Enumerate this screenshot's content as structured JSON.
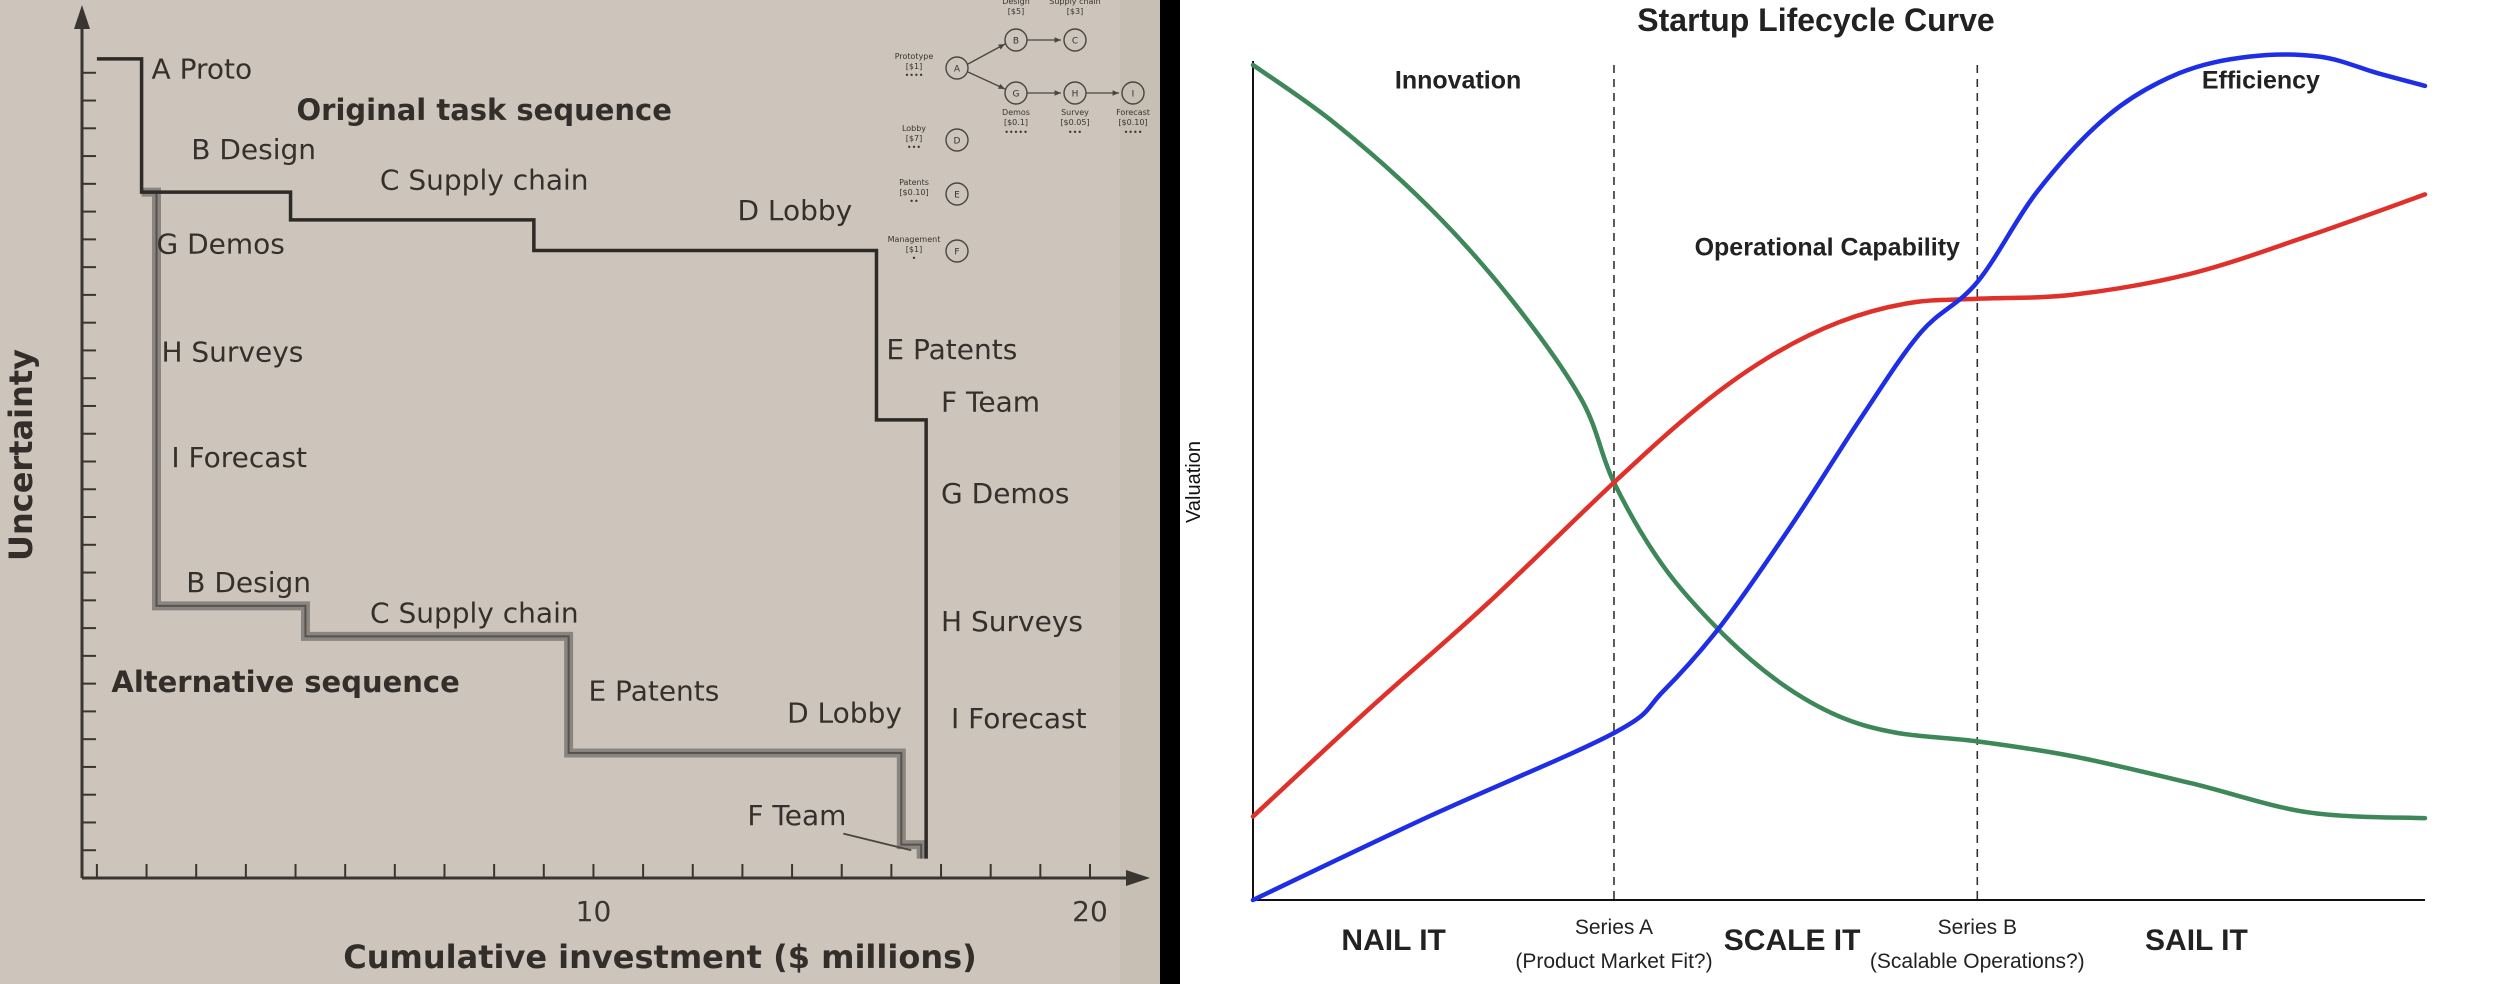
{
  "colors": {
    "paper": "#cdc5bb",
    "paper_dark": "#bdb4a8",
    "ink": "#3a3530",
    "alt_path": "#8a8580",
    "innovation": "#3d8758",
    "operational": "#e0302a",
    "efficiency": "#1e2ee6",
    "right_bg": "#ffffff"
  },
  "chart_data": [
    {
      "type": "line",
      "title": "",
      "xlabel": "Cumulative investment ($ millions)",
      "ylabel": "Uncertainty",
      "xlim": [
        -0.3,
        21
      ],
      "ylim": [
        0,
        30
      ],
      "x_ticks": [
        {
          "value": 10,
          "label": "10"
        },
        {
          "value": 20,
          "label": "20"
        }
      ],
      "annotations": [
        {
          "text": "Original task sequence",
          "x": 7.8,
          "y": 27.3,
          "bold": true
        },
        {
          "text": "Alternative sequence",
          "x": 3.8,
          "y": 6.7,
          "bold": true
        }
      ],
      "series": [
        {
          "name": "Original task sequence",
          "points": [
            [
              0,
              29.5
            ],
            [
              0.9,
              29.5
            ],
            [
              0.9,
              24.7
            ],
            [
              3.9,
              24.7
            ],
            [
              3.9,
              23.7
            ],
            [
              8.8,
              23.7
            ],
            [
              8.8,
              22.6
            ],
            [
              15.7,
              22.6
            ],
            [
              15.7,
              16.5
            ],
            [
              16.7,
              16.5
            ],
            [
              16.7,
              0.7
            ]
          ],
          "labels": [
            {
              "text": "A Proto",
              "x": 1.1,
              "y": 28.8
            },
            {
              "text": "B Design",
              "x": 1.9,
              "y": 25.9
            },
            {
              "text": "C Supply chain",
              "x": 5.7,
              "y": 24.8
            },
            {
              "text": "D Lobby",
              "x": 12.9,
              "y": 23.7
            },
            {
              "text": "E Patents",
              "x": 15.9,
              "y": 18.7
            },
            {
              "text": "F Team",
              "x": 17.0,
              "y": 16.8
            },
            {
              "text": "G Demos",
              "x": 17.0,
              "y": 13.5
            },
            {
              "text": "H Surveys",
              "x": 17.0,
              "y": 8.9
            },
            {
              "text": "I Forecast",
              "x": 17.2,
              "y": 5.4
            }
          ]
        },
        {
          "name": "Alternative sequence",
          "points": [
            [
              0.9,
              24.7
            ],
            [
              1.2,
              24.7
            ],
            [
              1.2,
              9.8
            ],
            [
              4.2,
              9.8
            ],
            [
              4.2,
              8.7
            ],
            [
              9.5,
              8.7
            ],
            [
              9.5,
              4.5
            ],
            [
              16.2,
              4.5
            ],
            [
              16.2,
              1.2
            ],
            [
              16.6,
              1.2
            ],
            [
              16.6,
              0.7
            ]
          ],
          "labels": [
            {
              "text": "G Demos",
              "x": 1.2,
              "y": 22.5
            },
            {
              "text": "H Surveys",
              "x": 1.3,
              "y": 18.6
            },
            {
              "text": "I Forecast",
              "x": 1.5,
              "y": 14.8
            },
            {
              "text": "B Design",
              "x": 1.8,
              "y": 10.3
            },
            {
              "text": "C Supply chain",
              "x": 5.5,
              "y": 9.2
            },
            {
              "text": "E Patents",
              "x": 9.9,
              "y": 6.4
            },
            {
              "text": "D Lobby",
              "x": 13.9,
              "y": 5.6
            },
            {
              "text": "F Team",
              "x": 13.1,
              "y": 1.9
            }
          ]
        }
      ]
    },
    {
      "type": "line",
      "title": "Startup Lifecycle Curve",
      "xlabel": "",
      "ylabel": "Valuation",
      "xlim": [
        0,
        10
      ],
      "ylim": [
        0,
        10
      ],
      "grid": false,
      "vlines": [
        {
          "x": 3.08,
          "label": "Series A",
          "sublabel": "(Product Market Fit?)"
        },
        {
          "x": 6.18,
          "label": "Series B",
          "sublabel": "(Scalable Operations?)"
        }
      ],
      "phase_labels": [
        {
          "text": "NAIL IT",
          "x": 1.2
        },
        {
          "text": "SCALE IT",
          "x": 4.6
        },
        {
          "text": "SAIL IT",
          "x": 8.05
        }
      ],
      "series": [
        {
          "name": "Innovation",
          "label_x": 1.75,
          "label_y": 9.72,
          "values": [
            [
              0,
              10
            ],
            [
              0.7,
              9.3
            ],
            [
              1.5,
              8.3
            ],
            [
              2.2,
              7.2
            ],
            [
              2.8,
              6.0
            ],
            [
              3.08,
              5.0
            ],
            [
              3.5,
              4.0
            ],
            [
              4.0,
              3.2
            ],
            [
              4.5,
              2.6
            ],
            [
              5.0,
              2.2
            ],
            [
              5.5,
              2.0
            ],
            [
              6.18,
              1.9
            ],
            [
              7.0,
              1.72
            ],
            [
              8.0,
              1.4
            ],
            [
              9.0,
              1.05
            ],
            [
              10,
              0.98
            ]
          ]
        },
        {
          "name": "Operational Capability",
          "label_x": 4.9,
          "label_y": 7.72,
          "values": [
            [
              0,
              1.0
            ],
            [
              1.0,
              2.3
            ],
            [
              2.0,
              3.55
            ],
            [
              3.08,
              5.0
            ],
            [
              3.8,
              5.9
            ],
            [
              4.4,
              6.5
            ],
            [
              5.0,
              6.92
            ],
            [
              5.6,
              7.15
            ],
            [
              6.18,
              7.2
            ],
            [
              7.0,
              7.25
            ],
            [
              8.0,
              7.5
            ],
            [
              9.0,
              7.95
            ],
            [
              10,
              8.45
            ]
          ]
        },
        {
          "name": "Efficiency",
          "label_x": 8.6,
          "label_y": 9.72,
          "values": [
            [
              0,
              0
            ],
            [
              1.5,
              1.0
            ],
            [
              3.08,
              2.0
            ],
            [
              3.5,
              2.5
            ],
            [
              4.0,
              3.3
            ],
            [
              4.6,
              4.5
            ],
            [
              5.2,
              5.8
            ],
            [
              5.7,
              6.8
            ],
            [
              6.18,
              7.4
            ],
            [
              6.7,
              8.5
            ],
            [
              7.3,
              9.4
            ],
            [
              7.9,
              9.9
            ],
            [
              8.5,
              10.1
            ],
            [
              9.1,
              10.1
            ],
            [
              9.6,
              9.9
            ],
            [
              10,
              9.75
            ]
          ]
        }
      ]
    }
  ],
  "mini_diagram": {
    "rows": [
      {
        "label": "Prototype",
        "value": "[$1]",
        "stars": "••••",
        "node": "A"
      },
      {
        "label": "Lobby",
        "value": "[$7]",
        "stars": "•••",
        "node": "D"
      },
      {
        "label": "Patents",
        "value": "[$0.10]",
        "stars": "••",
        "node": "E"
      },
      {
        "label": "Management",
        "value": "[$1]",
        "stars": "•",
        "node": "F"
      }
    ],
    "top_nodes": [
      {
        "label": "Design",
        "value": "[$5]",
        "node": "B"
      },
      {
        "label": "Supply chain",
        "value": "[$3]",
        "node": "C"
      }
    ],
    "bottom_nodes": [
      {
        "label": "Demos",
        "value": "[$0.1]",
        "stars": "•••••",
        "node": "G"
      },
      {
        "label": "Survey",
        "value": "[$0.05]",
        "stars": "•••",
        "node": "H"
      },
      {
        "label": "Forecast",
        "value": "[$0.10]",
        "stars": "••••",
        "node": "I"
      }
    ]
  }
}
